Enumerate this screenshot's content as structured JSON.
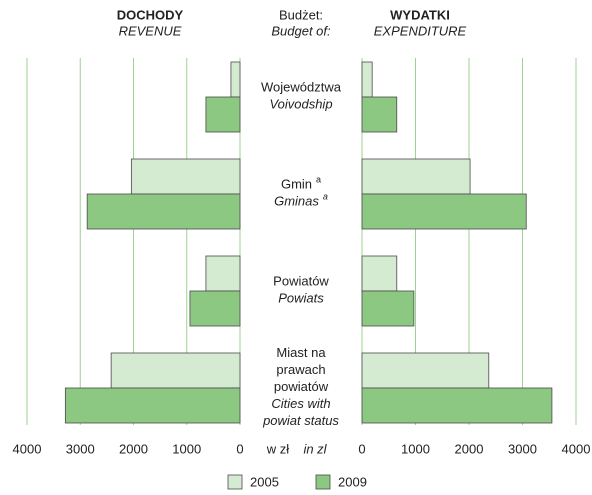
{
  "categories": [
    {
      "pl": [
        "Województwa"
      ],
      "en": [
        "Voivodship"
      ]
    },
    {
      "pl": [
        "Gmin"
      ],
      "en": [
        "Gminas"
      ],
      "note": "a"
    },
    {
      "pl": [
        "Powiatów"
      ],
      "en": [
        "Powiats"
      ]
    },
    {
      "pl": [
        "Miast na",
        "prawach",
        "powiatów"
      ],
      "en": [
        "Cities with",
        "powiat status"
      ]
    }
  ],
  "center": {
    "header": [
      "Budżet:",
      "Budget of:"
    ],
    "unit": [
      "w zł",
      "in zl"
    ]
  },
  "chart_data": [
    {
      "type": "bar",
      "title": "DOCHODY",
      "subtitle": "REVENUE",
      "x_reversed": true,
      "xlim": [
        0,
        4000
      ],
      "xticks": [
        0,
        1000,
        2000,
        3000,
        4000
      ],
      "grid": true,
      "series": [
        {
          "name": "2005",
          "color": "#d5ebd1",
          "values": [
            170,
            2040,
            640,
            2420
          ]
        },
        {
          "name": "2009",
          "color": "#8dc883",
          "values": [
            640,
            2870,
            940,
            3280
          ]
        }
      ]
    },
    {
      "type": "bar",
      "title": "WYDATKI",
      "subtitle": "EXPENDITURE",
      "x_reversed": false,
      "xlim": [
        0,
        4000
      ],
      "xticks": [
        0,
        1000,
        2000,
        3000,
        4000
      ],
      "grid": true,
      "series": [
        {
          "color": "#d5ebd1",
          "values": [
            190,
            2020,
            650,
            2370
          ]
        },
        {
          "color": "#8dc883",
          "values": [
            650,
            3070,
            970,
            3550
          ]
        }
      ]
    }
  ]
}
